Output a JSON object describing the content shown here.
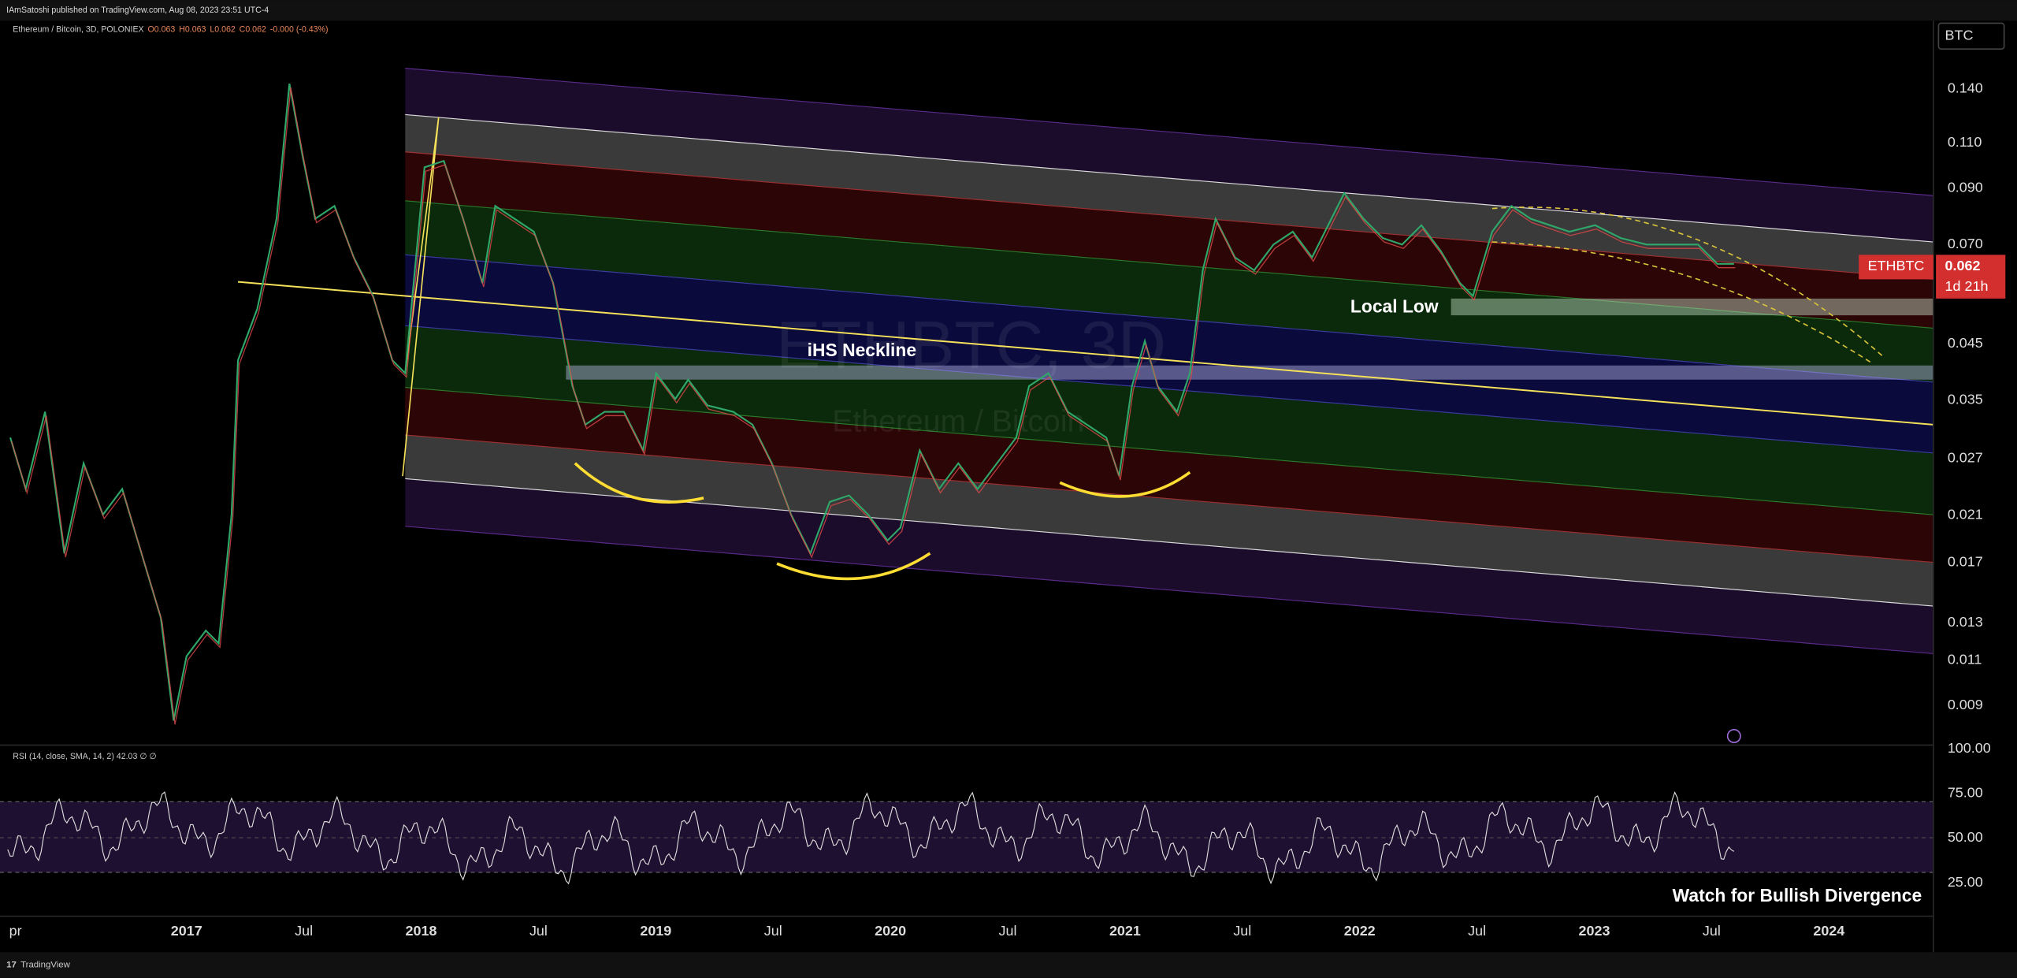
{
  "header": {
    "publisher": "IAmSatoshi published on TradingView.com, Aug 08, 2023 23:51 UTC-4"
  },
  "symbol": {
    "name": "Ethereum / Bitcoin, 3D, POLONIEX",
    "ohlc": [
      "O0.063",
      "H0.063",
      "L0.062",
      "C0.062",
      "-0.000 (-0.43%)"
    ]
  },
  "currency": "BTC",
  "watermark": {
    "symbol": "ETHBTC, 3D",
    "description": "Ethereum / Bitcoin"
  },
  "annotations": {
    "neckline": "iHS Neckline",
    "local_low": "Local Low",
    "divergence": "Watch for Bullish Divergence"
  },
  "price_axis": [
    "0.140",
    "0.110",
    "0.090",
    "0.070",
    "0.045",
    "0.035",
    "0.027",
    "0.021",
    "0.017",
    "0.013",
    "0.011",
    "0.009"
  ],
  "last_price": {
    "symbol": "ETHBTC",
    "price": "0.062",
    "countdown": "1d 21h"
  },
  "rsi": {
    "legend": "RSI (14, close, SMA, 14, 2)",
    "value": "42.03",
    "extra": "∅ ∅",
    "ticks": [
      "100.00",
      "75.00",
      "50.00",
      "25.00"
    ]
  },
  "time_axis": [
    "pr",
    "2017",
    "Jul",
    "2018",
    "Jul",
    "2019",
    "Jul",
    "2020",
    "Jul",
    "2021",
    "Jul",
    "2022",
    "Jul",
    "2023",
    "Jul",
    "2024"
  ],
  "footer": "TradingView"
}
